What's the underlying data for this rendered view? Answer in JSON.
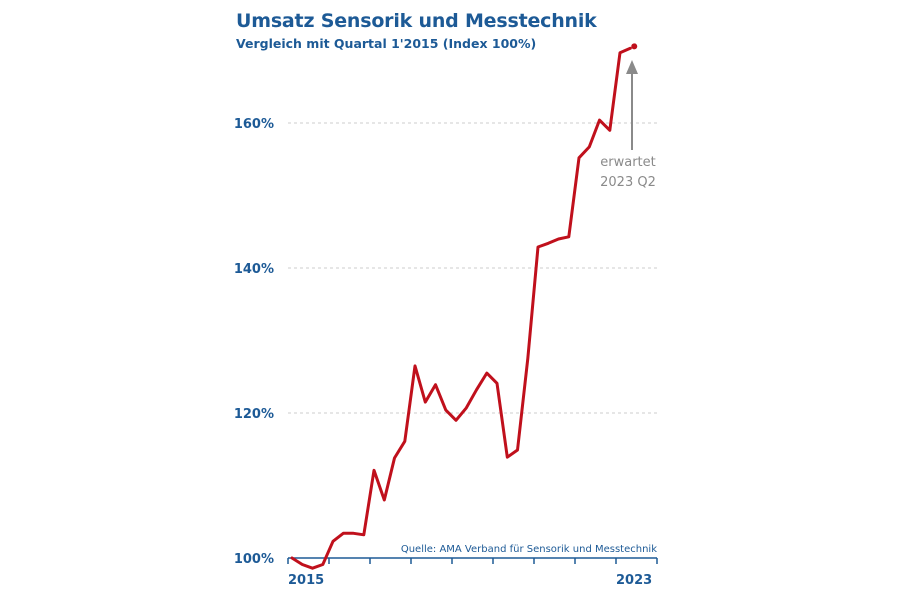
{
  "chart_data": {
    "type": "line",
    "title": "Umsatz Sensorik und Messtechnik",
    "subtitle": "Vergleich mit Quartal 1'2015 (Index 100%)",
    "xlabel": "",
    "ylabel": "",
    "ylim": [
      100,
      172
    ],
    "yticks": [
      100,
      120,
      140,
      160
    ],
    "ytick_labels": [
      "100%",
      "120%",
      "140%",
      "160%"
    ],
    "xtick_labels": [
      "2015",
      "2023"
    ],
    "x_year_ticks": [
      2015,
      2016,
      2017,
      2018,
      2019,
      2020,
      2021,
      2022,
      2023,
      2024
    ],
    "grid": true,
    "series": [
      {
        "name": "Umsatz Index",
        "color": "#c0101c",
        "x": [
          "2015 Q1",
          "2015 Q2",
          "2015 Q3",
          "2015 Q4",
          "2016 Q1",
          "2016 Q2",
          "2016 Q3",
          "2016 Q4",
          "2017 Q1",
          "2017 Q2",
          "2017 Q3",
          "2017 Q4",
          "2018 Q1",
          "2018 Q2",
          "2018 Q3",
          "2018 Q4",
          "2019 Q1",
          "2019 Q2",
          "2019 Q3",
          "2019 Q4",
          "2020 Q1",
          "2020 Q2",
          "2020 Q3",
          "2020 Q4",
          "2021 Q1",
          "2021 Q2",
          "2021 Q3",
          "2021 Q4",
          "2022 Q1",
          "2022 Q2",
          "2022 Q3",
          "2022 Q4",
          "2023 Q1"
        ],
        "values": [
          100.0,
          99.1,
          98.6,
          99.1,
          102.3,
          103.4,
          103.4,
          103.2,
          112.1,
          108.0,
          113.8,
          116.1,
          126.5,
          121.5,
          123.9,
          120.4,
          119.0,
          120.7,
          123.2,
          125.5,
          124.1,
          113.9,
          114.9,
          127.5,
          142.9,
          143.4,
          144.0,
          144.3,
          155.2,
          156.7,
          160.4,
          159.0,
          169.7
        ]
      }
    ],
    "expected_point": {
      "x": "2023 Q2",
      "value": 170.3
    },
    "annotation": {
      "line1": "erwartet",
      "line2": "2023 Q2"
    },
    "source": "Quelle: AMA Verband für Sensorik und Messtechnik",
    "colors": {
      "title": "#1d5a96",
      "line": "#c0101c",
      "axis": "#1d5a96",
      "grid": "#cccccc",
      "annotation": "#8a8a8a"
    }
  }
}
